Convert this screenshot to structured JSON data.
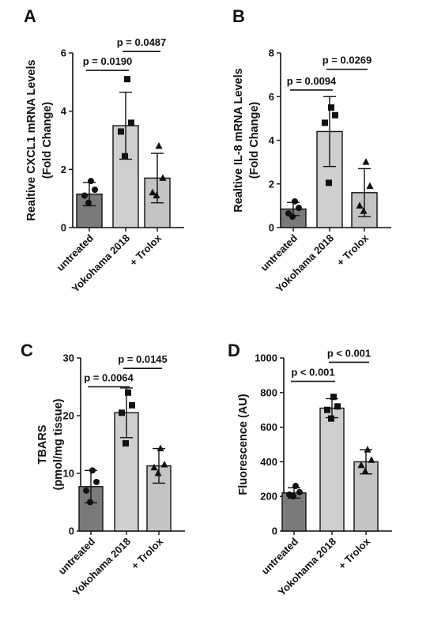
{
  "chart_data": [
    {
      "panel": "A",
      "type": "bar",
      "ylabel": [
        "Realtive CXCL1 mRNA Levels",
        "(Fold Change)"
      ],
      "ylim": [
        0,
        6
      ],
      "yticks": [
        0,
        2,
        4,
        6
      ],
      "categories": [
        "untreated",
        "Yokohama 2018",
        "+ Trolox"
      ],
      "values": [
        1.15,
        3.5,
        1.7
      ],
      "errors": [
        0.4,
        1.15,
        0.85
      ],
      "colors": [
        "#7a7a7a",
        "#cfcfcf",
        "#c4c4c4"
      ],
      "markers": [
        "circle",
        "square",
        "triangle"
      ],
      "points": [
        [
          1.6,
          1.3,
          1.1,
          0.85
        ],
        [
          5.1,
          3.6,
          3.3,
          2.45
        ],
        [
          2.8,
          1.7,
          1.2,
          1.1
        ]
      ],
      "comparisons": [
        {
          "from": 0,
          "to": 1,
          "label": "p = 0.0190",
          "y": 5.4
        },
        {
          "from": 1,
          "to": 2,
          "label": "p = 0.0487",
          "y": 6.05
        }
      ]
    },
    {
      "panel": "B",
      "type": "bar",
      "ylabel": [
        "Realtive IL-8 mRNA Levels",
        "(Fold Change)"
      ],
      "ylim": [
        0,
        8
      ],
      "yticks": [
        0,
        2,
        4,
        6,
        8
      ],
      "categories": [
        "untreated",
        "Yokohama 2018",
        "+ Trolox"
      ],
      "values": [
        0.85,
        4.4,
        1.6
      ],
      "errors": [
        0.3,
        1.6,
        1.1
      ],
      "colors": [
        "#7a7a7a",
        "#cfcfcf",
        "#c4c4c4"
      ],
      "markers": [
        "circle",
        "square",
        "triangle"
      ],
      "points": [
        [
          1.2,
          0.9,
          0.65,
          0.5
        ],
        [
          5.5,
          5.15,
          4.8,
          2.05
        ],
        [
          3.0,
          1.9,
          1.0,
          0.75
        ]
      ],
      "comparisons": [
        {
          "from": 0,
          "to": 1,
          "label": "p = 0.0094",
          "y": 6.3
        },
        {
          "from": 1,
          "to": 2,
          "label": "p = 0.0269",
          "y": 7.25
        }
      ]
    },
    {
      "panel": "C",
      "type": "bar",
      "ylabel": [
        "TBARS",
        "(pmol/mg tissue)"
      ],
      "ylim": [
        0,
        30
      ],
      "yticks": [
        0,
        10,
        20,
        30
      ],
      "categories": [
        "untreated",
        "Yokohama 2018",
        "+ Trolox"
      ],
      "values": [
        7.7,
        20.5,
        11.3
      ],
      "errors": [
        2.8,
        4.3,
        3.0
      ],
      "colors": [
        "#7a7a7a",
        "#cfcfcf",
        "#c4c4c4"
      ],
      "markers": [
        "circle",
        "square",
        "triangle"
      ],
      "points": [
        [
          10.5,
          8.5,
          7.0,
          5.0
        ],
        [
          24.0,
          21.8,
          20.5,
          15.2
        ],
        [
          14.3,
          11.5,
          11.0,
          10.0
        ]
      ],
      "comparisons": [
        {
          "from": 0,
          "to": 1,
          "label": "p = 0.0064",
          "y": 25.0
        },
        {
          "from": 1,
          "to": 2,
          "label": "p = 0.0145",
          "y": 28.2
        }
      ]
    },
    {
      "panel": "D",
      "type": "bar",
      "ylabel": [
        "Fluorescence (AU)"
      ],
      "ylim": [
        0,
        1000
      ],
      "yticks": [
        0,
        200,
        400,
        600,
        800,
        1000
      ],
      "categories": [
        "untreated",
        "Yokohama 2018",
        "+ Trolox"
      ],
      "values": [
        220,
        710,
        400
      ],
      "errors": [
        30,
        55,
        70
      ],
      "colors": [
        "#7a7a7a",
        "#cfcfcf",
        "#c4c4c4"
      ],
      "markers": [
        "circle",
        "square",
        "triangle"
      ],
      "points": [
        [
          260,
          225,
          210,
          200
        ],
        [
          775,
          720,
          700,
          650
        ],
        [
          470,
          410,
          380,
          345
        ]
      ],
      "comparisons": [
        {
          "from": 0,
          "to": 1,
          "label": "p < 0.001",
          "y": 865
        },
        {
          "from": 1,
          "to": 2,
          "label": "p < 0.001",
          "y": 975
        }
      ]
    }
  ]
}
